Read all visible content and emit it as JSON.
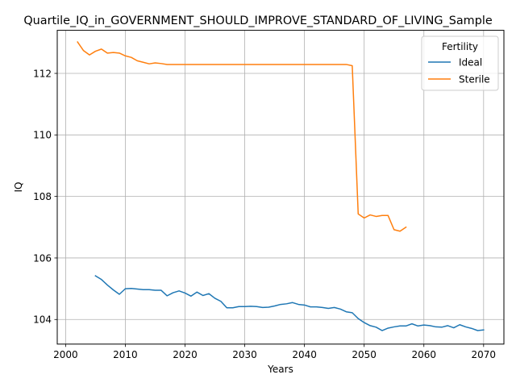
{
  "chart_data": {
    "type": "line",
    "title": "Quartile_IQ_in_GOVERNMENT_SHOULD_IMPROVE_STANDARD_OF_LIVING_Sample",
    "xlabel": "Years",
    "ylabel": "IQ",
    "xlim": [
      1998.6,
      2073.4
    ],
    "ylim": [
      103.2,
      113.4
    ],
    "x_ticks": [
      2000,
      2010,
      2020,
      2030,
      2040,
      2050,
      2060,
      2070
    ],
    "y_ticks": [
      104,
      106,
      108,
      110,
      112
    ],
    "grid": true,
    "legend": {
      "title": "Fertility",
      "placement": "top-right"
    },
    "series": [
      {
        "name": "Ideal",
        "color": "#1f77b4",
        "x": [
          2005,
          2006,
          2007,
          2008,
          2009,
          2010,
          2011,
          2012,
          2013,
          2014,
          2015,
          2016,
          2017,
          2018,
          2019,
          2020,
          2021,
          2022,
          2023,
          2024,
          2025,
          2026,
          2027,
          2028,
          2029,
          2030,
          2031,
          2032,
          2033,
          2034,
          2035,
          2036,
          2037,
          2038,
          2039,
          2040,
          2041,
          2042,
          2043,
          2044,
          2045,
          2046,
          2047,
          2048,
          2049,
          2050,
          2051,
          2052,
          2053,
          2054,
          2055,
          2056,
          2057,
          2058,
          2059,
          2060,
          2061,
          2062,
          2063,
          2064,
          2065,
          2066,
          2067,
          2068,
          2069,
          2070
        ],
        "values": [
          105.42,
          105.3,
          105.12,
          104.96,
          104.82,
          105.0,
          105.01,
          104.99,
          104.97,
          104.97,
          104.95,
          104.95,
          104.77,
          104.87,
          104.93,
          104.86,
          104.76,
          104.89,
          104.78,
          104.84,
          104.69,
          104.59,
          104.38,
          104.38,
          104.42,
          104.42,
          104.43,
          104.42,
          104.39,
          104.4,
          104.44,
          104.49,
          104.51,
          104.55,
          104.49,
          104.47,
          104.41,
          104.41,
          104.39,
          104.36,
          104.39,
          104.34,
          104.25,
          104.22,
          104.03,
          103.9,
          103.8,
          103.75,
          103.64,
          103.72,
          103.76,
          103.79,
          103.79,
          103.86,
          103.79,
          103.82,
          103.8,
          103.76,
          103.75,
          103.8,
          103.73,
          103.83,
          103.76,
          103.71,
          103.64,
          103.66
        ]
      },
      {
        "name": "Sterile",
        "color": "#ff7f0e",
        "x": [
          2002,
          2003,
          2004,
          2005,
          2006,
          2007,
          2008,
          2009,
          2010,
          2011,
          2012,
          2013,
          2014,
          2015,
          2016,
          2017,
          2018,
          2019,
          2020,
          2021,
          2022,
          2023,
          2024,
          2025,
          2026,
          2027,
          2028,
          2029,
          2030,
          2031,
          2032,
          2033,
          2034,
          2035,
          2036,
          2037,
          2038,
          2039,
          2040,
          2041,
          2042,
          2043,
          2044,
          2045,
          2046,
          2047,
          2048,
          2049,
          2050,
          2051,
          2052,
          2053,
          2054,
          2055,
          2056,
          2057
        ],
        "values": [
          113.02,
          112.74,
          112.6,
          112.72,
          112.79,
          112.66,
          112.68,
          112.66,
          112.57,
          112.52,
          112.41,
          112.36,
          112.31,
          112.34,
          112.32,
          112.29,
          112.29,
          112.29,
          112.29,
          112.29,
          112.29,
          112.29,
          112.29,
          112.29,
          112.29,
          112.29,
          112.29,
          112.29,
          112.29,
          112.29,
          112.29,
          112.29,
          112.29,
          112.29,
          112.29,
          112.29,
          112.29,
          112.29,
          112.29,
          112.29,
          112.29,
          112.29,
          112.29,
          112.29,
          112.29,
          112.29,
          112.25,
          107.43,
          107.3,
          107.4,
          107.35,
          107.38,
          107.38,
          106.92,
          106.87,
          107.0
        ]
      }
    ]
  }
}
